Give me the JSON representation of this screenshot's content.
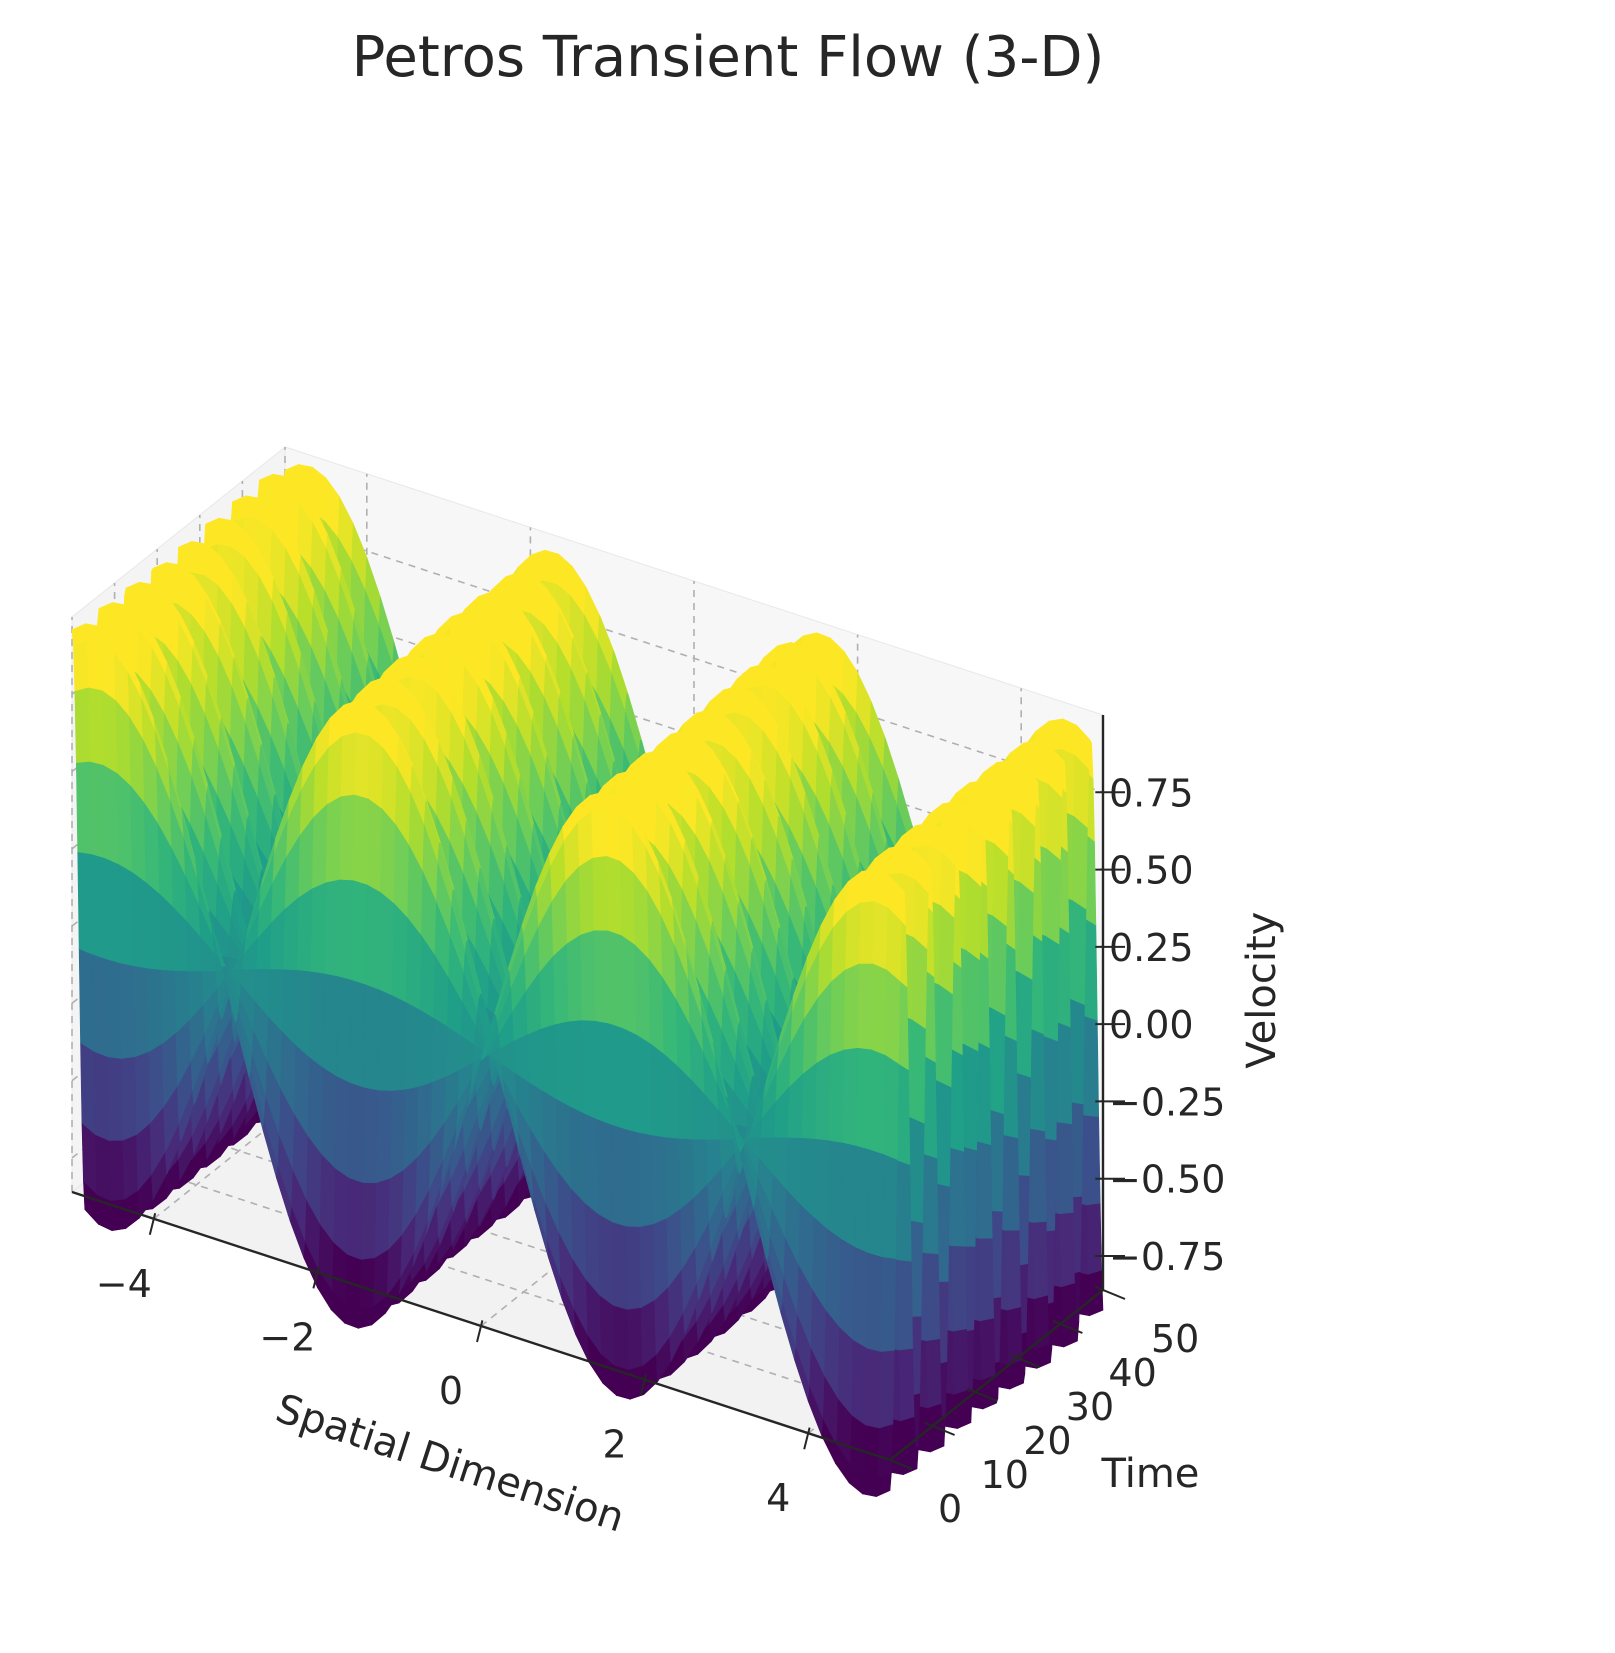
{
  "chart_data": {
    "type": "surface3d",
    "title": "Petros Transient Flow (3-D)",
    "xlabel": "Spatial Dimension",
    "ylabel": "Time",
    "zlabel": "Velocity",
    "xlim": [
      -5,
      5
    ],
    "ylim": [
      0,
      50
    ],
    "zlim": [
      -0.86,
      1.0
    ],
    "x_ticks": [
      -4,
      -2,
      0,
      2,
      4
    ],
    "y_ticks": [
      0,
      10,
      20,
      30,
      40,
      50
    ],
    "z_ticks": [
      -0.75,
      -0.5,
      -0.25,
      0.0,
      0.25,
      0.5,
      0.75
    ],
    "x_tick_labels": [
      "−4",
      "−2",
      "0",
      "2",
      "4"
    ],
    "y_tick_labels": [
      "0",
      "10",
      "20",
      "30",
      "40",
      "50"
    ],
    "z_tick_labels": [
      "−0.75",
      "−0.50",
      "−0.25",
      "0.00",
      "0.25",
      "0.50",
      "0.75"
    ],
    "colormap": "viridis",
    "grid": true,
    "surface": {
      "expression": "sin(x) * cos(t)",
      "x_range": [
        -5,
        5
      ],
      "t_range": [
        0,
        50
      ],
      "value_range": [
        -0.86,
        0.86
      ]
    }
  }
}
